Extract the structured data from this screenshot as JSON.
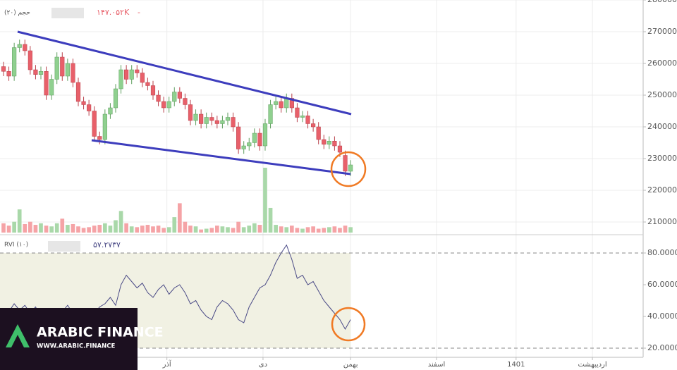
{
  "chart_data": [
    {
      "type": "candlestick",
      "volume_label": "حجم (۲۰)",
      "volume_value": "۱۴۷.۰۵۲K",
      "volume_change": "-",
      "up_color": "#8fd08f",
      "down_color": "#e8606a",
      "up_volume_color": "#a9d8a9",
      "down_volume_color": "#f5a3a6",
      "open": [
        259000,
        257500,
        256000,
        265000,
        266000,
        264000,
        258000,
        256500,
        257500,
        250000,
        255000,
        262000,
        256000,
        260000,
        254000,
        248000,
        247000,
        245000,
        237000,
        236000,
        244000,
        246000,
        252000,
        258000,
        255000,
        258000,
        257000,
        254000,
        253000,
        250000,
        248000,
        246000,
        248000,
        251000,
        249000,
        247000,
        242000,
        244000,
        241000,
        243000,
        242000,
        241000,
        242000,
        243000,
        240000,
        233000,
        234000,
        235000,
        238000,
        234000,
        241000,
        247000,
        248000,
        246000,
        249000,
        246000,
        243000,
        243500,
        241000,
        240000,
        236000,
        234500,
        235500,
        234000,
        231000,
        226000
      ],
      "high": [
        260500,
        259000,
        266500,
        267500,
        267500,
        265500,
        259500,
        259000,
        259000,
        256500,
        263500,
        263500,
        261500,
        261500,
        255500,
        249500,
        248500,
        246500,
        238500,
        245500,
        247500,
        253500,
        259500,
        259500,
        259500,
        259500,
        258500,
        255500,
        254500,
        251500,
        249500,
        249500,
        252500,
        252500,
        250500,
        248500,
        245500,
        245500,
        244500,
        244500,
        243500,
        243500,
        244500,
        244500,
        241500,
        235500,
        236500,
        239500,
        239500,
        242500,
        248500,
        249500,
        249500,
        250500,
        250500,
        247500,
        245000,
        245000,
        242500,
        241500,
        237500,
        237000,
        237000,
        235500,
        232500,
        229500
      ],
      "low": [
        256000,
        254500,
        254500,
        263500,
        262500,
        256500,
        255000,
        255000,
        248500,
        248500,
        253500,
        254500,
        254500,
        252500,
        246500,
        245500,
        243500,
        235500,
        234500,
        234500,
        242500,
        244500,
        250500,
        253500,
        253500,
        255500,
        252500,
        251500,
        248500,
        246500,
        244500,
        244500,
        246500,
        247500,
        245500,
        240500,
        240500,
        239500,
        239500,
        240500,
        239500,
        239500,
        240500,
        238500,
        231500,
        231500,
        232500,
        233500,
        232500,
        232500,
        239500,
        245500,
        244500,
        244500,
        244500,
        241500,
        241500,
        239500,
        238500,
        234500,
        233000,
        233000,
        232500,
        230500,
        224500,
        224500
      ],
      "close": [
        257500,
        256000,
        265000,
        266000,
        264000,
        258000,
        256500,
        257500,
        250000,
        255000,
        262000,
        256000,
        260000,
        254000,
        248000,
        247000,
        245000,
        237000,
        236000,
        244000,
        246000,
        252000,
        258000,
        255000,
        258000,
        257000,
        254000,
        253000,
        250000,
        248000,
        246000,
        248000,
        251000,
        249000,
        247000,
        242000,
        244000,
        241000,
        243000,
        242000,
        241000,
        242000,
        243000,
        240000,
        233000,
        234000,
        235000,
        238000,
        234000,
        241000,
        247000,
        248000,
        246000,
        249000,
        246000,
        243000,
        243500,
        241000,
        240000,
        236000,
        234500,
        235500,
        234000,
        232000,
        226000,
        228000
      ],
      "volume": [
        60,
        45,
        70,
        150,
        55,
        70,
        50,
        60,
        45,
        40,
        60,
        90,
        50,
        55,
        40,
        30,
        35,
        45,
        50,
        60,
        45,
        80,
        140,
        60,
        40,
        35,
        45,
        50,
        40,
        45,
        30,
        35,
        100,
        190,
        70,
        45,
        40,
        20,
        25,
        30,
        45,
        40,
        35,
        30,
        70,
        35,
        45,
        60,
        50,
        420,
        160,
        50,
        40,
        35,
        45,
        30,
        25,
        35,
        40,
        25,
        30,
        35,
        40,
        30,
        45,
        35
      ],
      "ylim": [
        206000,
        280000
      ],
      "yticks": [
        210000,
        220000,
        230000,
        240000,
        250000,
        260000,
        270000,
        280000
      ],
      "xlim": [
        0,
        119.8
      ],
      "xticks": [
        {
          "value": 30.6,
          "label": "آذر"
        },
        {
          "value": 48.6,
          "label": "دی"
        },
        {
          "value": 65,
          "label": "بهمن"
        },
        {
          "value": 81.1,
          "label": "اسفند"
        },
        {
          "value": 96,
          "label": "1401"
        },
        {
          "value": 110.3,
          "label": "اردیبهشت"
        }
      ],
      "grid": true
    },
    {
      "type": "line",
      "name": "RVI (۱۰)",
      "value_label": "۵۷.۲۷۳۷",
      "color": "#4a4a86",
      "values": [
        45,
        43,
        48,
        44,
        47,
        42,
        46,
        40,
        44,
        41,
        45,
        43,
        47,
        42,
        44,
        40,
        38,
        42,
        46,
        48,
        52,
        47,
        60,
        66,
        62,
        58,
        61,
        55,
        52,
        57,
        60,
        54,
        58,
        60,
        55,
        48,
        50,
        44,
        40,
        38,
        46,
        50,
        48,
        44,
        38,
        36,
        46,
        52,
        58,
        60,
        66,
        74,
        80,
        85,
        76,
        64,
        66,
        60,
        62,
        56,
        50,
        46,
        42,
        38,
        32,
        38
      ],
      "ylim": [
        15.11,
        89.33
      ],
      "yticks": [
        {
          "value": 20,
          "label": "20.0000"
        },
        {
          "value": 40,
          "label": "40.0000"
        },
        {
          "value": 60,
          "label": "60.0000"
        },
        {
          "value": 80,
          "label": "80.0000"
        }
      ],
      "band": [
        20,
        80
      ]
    }
  ],
  "logo": {
    "title": "ARABIC FINANCE",
    "url": "WWW.ARABIC.FINANCE"
  }
}
